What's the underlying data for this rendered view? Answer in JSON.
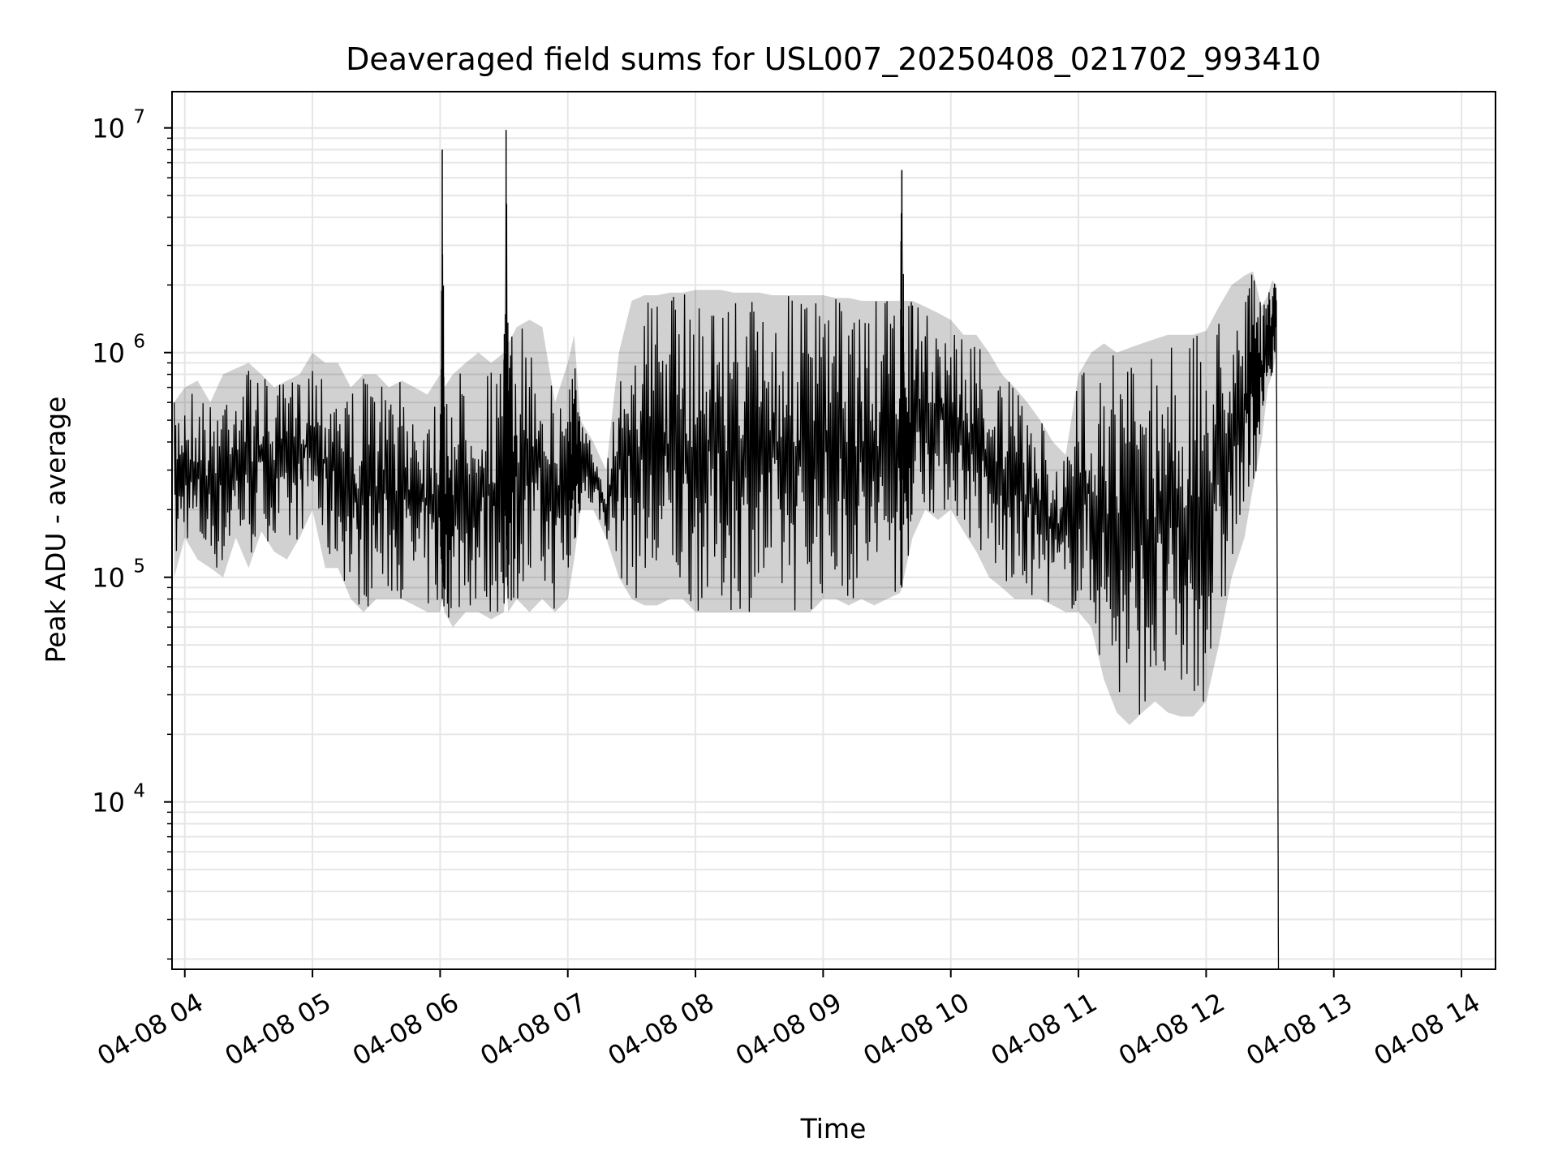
{
  "chart_data": {
    "type": "line",
    "title": "Deaveraged field sums for USL007_20250408_021702_993410",
    "xlabel": "Time",
    "ylabel": "Peak ADU - average",
    "y_scale": "log",
    "grid": true,
    "grid_color": "#e6e6e6",
    "line_color": "#000000",
    "ylim": [
      1800,
      14500000
    ],
    "xlim": [
      "2025-04-08 03:54",
      "2025-04-08 14:16"
    ],
    "x_ticks": [
      {
        "value": "2025-04-08 04:00",
        "label": "04-08 04"
      },
      {
        "value": "2025-04-08 05:00",
        "label": "04-08 05"
      },
      {
        "value": "2025-04-08 06:00",
        "label": "04-08 06"
      },
      {
        "value": "2025-04-08 07:00",
        "label": "04-08 07"
      },
      {
        "value": "2025-04-08 08:00",
        "label": "04-08 08"
      },
      {
        "value": "2025-04-08 09:00",
        "label": "04-08 09"
      },
      {
        "value": "2025-04-08 10:00",
        "label": "04-08 10"
      },
      {
        "value": "2025-04-08 11:00",
        "label": "04-08 11"
      },
      {
        "value": "2025-04-08 12:00",
        "label": "04-08 12"
      },
      {
        "value": "2025-04-08 13:00",
        "label": "04-08 13"
      },
      {
        "value": "2025-04-08 14:00",
        "label": "04-08 14"
      }
    ],
    "y_ticks": [
      {
        "value": 10000,
        "base": "10",
        "exp": "4"
      },
      {
        "value": 100000,
        "base": "10",
        "exp": "5"
      },
      {
        "value": 1000000,
        "base": "10",
        "exp": "6"
      },
      {
        "value": 10000000,
        "base": "10",
        "exp": "7"
      }
    ],
    "series": [
      {
        "x": [
          "2025-04-08 03:55",
          "2025-04-08 04:00",
          "2025-04-08 04:06",
          "2025-04-08 04:12",
          "2025-04-08 04:18",
          "2025-04-08 04:24",
          "2025-04-08 04:30",
          "2025-04-08 04:36",
          "2025-04-08 04:42",
          "2025-04-08 04:48",
          "2025-04-08 04:54",
          "2025-04-08 05:00",
          "2025-04-08 05:06",
          "2025-04-08 05:12",
          "2025-04-08 05:18",
          "2025-04-08 05:24",
          "2025-04-08 05:30",
          "2025-04-08 05:36",
          "2025-04-08 05:42",
          "2025-04-08 05:48",
          "2025-04-08 05:54",
          "2025-04-08 06:00",
          "2025-04-08 06:01",
          "2025-04-08 06:02",
          "2025-04-08 06:06",
          "2025-04-08 06:12",
          "2025-04-08 06:18",
          "2025-04-08 06:24",
          "2025-04-08 06:30",
          "2025-04-08 06:31",
          "2025-04-08 06:32",
          "2025-04-08 06:36",
          "2025-04-08 06:42",
          "2025-04-08 06:48",
          "2025-04-08 06:54",
          "2025-04-08 07:00",
          "2025-04-08 07:03",
          "2025-04-08 07:06",
          "2025-04-08 07:12",
          "2025-04-08 07:18",
          "2025-04-08 07:24",
          "2025-04-08 07:30",
          "2025-04-08 07:36",
          "2025-04-08 07:42",
          "2025-04-08 07:48",
          "2025-04-08 07:54",
          "2025-04-08 08:00",
          "2025-04-08 08:06",
          "2025-04-08 08:12",
          "2025-04-08 08:18",
          "2025-04-08 08:24",
          "2025-04-08 08:30",
          "2025-04-08 08:36",
          "2025-04-08 08:42",
          "2025-04-08 08:48",
          "2025-04-08 08:54",
          "2025-04-08 09:00",
          "2025-04-08 09:06",
          "2025-04-08 09:12",
          "2025-04-08 09:18",
          "2025-04-08 09:24",
          "2025-04-08 09:30",
          "2025-04-08 09:36",
          "2025-04-08 09:37",
          "2025-04-08 09:38",
          "2025-04-08 09:42",
          "2025-04-08 09:48",
          "2025-04-08 09:54",
          "2025-04-08 10:00",
          "2025-04-08 10:06",
          "2025-04-08 10:12",
          "2025-04-08 10:18",
          "2025-04-08 10:24",
          "2025-04-08 10:30",
          "2025-04-08 10:36",
          "2025-04-08 10:42",
          "2025-04-08 10:48",
          "2025-04-08 10:54",
          "2025-04-08 11:00",
          "2025-04-08 11:06",
          "2025-04-08 11:12",
          "2025-04-08 11:18",
          "2025-04-08 11:24",
          "2025-04-08 11:30",
          "2025-04-08 11:36",
          "2025-04-08 11:42",
          "2025-04-08 11:48",
          "2025-04-08 11:54",
          "2025-04-08 12:00",
          "2025-04-08 12:06",
          "2025-04-08 12:12",
          "2025-04-08 12:18",
          "2025-04-08 12:22",
          "2025-04-08 12:26",
          "2025-04-08 12:29",
          "2025-04-08 12:31",
          "2025-04-08 12:33",
          "2025-04-08 12:34"
        ],
        "lo": [
          100000,
          150000,
          120000,
          110000,
          100000,
          150000,
          110000,
          160000,
          130000,
          120000,
          150000,
          200000,
          110000,
          110000,
          80000,
          70000,
          80000,
          80000,
          80000,
          75000,
          70000,
          70000,
          80000,
          70000,
          60000,
          70000,
          70000,
          65000,
          70000,
          100000,
          70000,
          80000,
          70000,
          80000,
          70000,
          80000,
          120000,
          200000,
          200000,
          150000,
          100000,
          80000,
          75000,
          75000,
          80000,
          80000,
          70000,
          70000,
          70000,
          70000,
          70000,
          70000,
          70000,
          70000,
          70000,
          70000,
          80000,
          80000,
          75000,
          80000,
          75000,
          80000,
          85000,
          90000,
          100000,
          150000,
          200000,
          180000,
          200000,
          160000,
          130000,
          100000,
          90000,
          80000,
          80000,
          80000,
          75000,
          70000,
          70000,
          60000,
          35000,
          25000,
          22000,
          25000,
          28000,
          25000,
          24000,
          24000,
          28000,
          50000,
          100000,
          150000,
          250000,
          400000,
          700000,
          800000,
          1000000,
          1800
        ],
        "hi": [
          600000,
          700000,
          750000,
          600000,
          800000,
          850000,
          900000,
          800000,
          700000,
          750000,
          800000,
          1000000,
          900000,
          900000,
          700000,
          800000,
          800000,
          700000,
          750000,
          700000,
          650000,
          800000,
          8000000,
          700000,
          800000,
          900000,
          1000000,
          900000,
          1000000,
          9800000,
          1100000,
          1300000,
          1400000,
          1300000,
          600000,
          900000,
          1200000,
          500000,
          400000,
          300000,
          1000000,
          1700000,
          1800000,
          1800000,
          1850000,
          1850000,
          1900000,
          1900000,
          1900000,
          1850000,
          1850000,
          1850000,
          1800000,
          1800000,
          1800000,
          1800000,
          1800000,
          1750000,
          1750000,
          1700000,
          1700000,
          1700000,
          1700000,
          6500000,
          1700000,
          1700000,
          1600000,
          1500000,
          1400000,
          1200000,
          1200000,
          1000000,
          800000,
          700000,
          600000,
          500000,
          400000,
          350000,
          800000,
          1000000,
          1100000,
          1000000,
          1050000,
          1100000,
          1150000,
          1200000,
          1200000,
          1200000,
          1250000,
          1600000,
          2000000,
          2200000,
          2300000,
          1600000,
          1800000,
          2100000,
          2000000,
          1800
        ]
      }
    ]
  }
}
